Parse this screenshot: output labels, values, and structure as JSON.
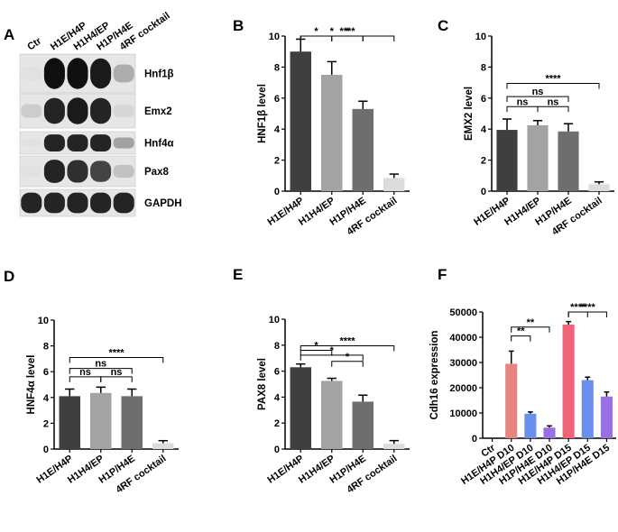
{
  "colors": {
    "dark": "#3f3f3f",
    "mid": "#8e8e8e",
    "light": "#6e6e6e",
    "faint": "#dcdcdc",
    "red": "#f0647a",
    "salmon": "#e8857f",
    "blue": "#6b8fee",
    "purple": "#9a6fe6"
  },
  "panels": {
    "A": {
      "letter": "A",
      "lanes": [
        "Ctr",
        "H1E/H4P",
        "H1H4/EP",
        "H1P/H4E",
        "4RF cocktail"
      ],
      "bands": [
        {
          "name": "Hnf1β",
          "intensity": [
            0.0,
            1.0,
            1.0,
            0.95,
            0.25
          ]
        },
        {
          "name": "Emx2",
          "intensity": [
            0.1,
            0.9,
            0.95,
            0.9,
            0.05
          ]
        },
        {
          "name": "Hnf4α",
          "intensity": [
            0.0,
            0.9,
            0.9,
            0.9,
            0.3
          ]
        },
        {
          "name": "Pax8",
          "intensity": [
            0.0,
            0.9,
            0.85,
            0.75,
            0.15
          ]
        },
        {
          "name": "GAPDH",
          "intensity": [
            0.9,
            0.9,
            0.9,
            0.9,
            0.9
          ]
        }
      ]
    }
  },
  "chart_data": [
    {
      "panel": "B",
      "type": "bar",
      "categories": [
        "H1E/H4P",
        "H1H4/EP",
        "H1P/H4E",
        "4RF cocktail"
      ],
      "values": [
        9.0,
        7.5,
        5.3,
        0.85
      ],
      "errors": [
        0.8,
        0.85,
        0.5,
        0.25
      ],
      "colors": [
        "#3f3f3f",
        "#a3a3a3",
        "#6e6e6e",
        "#dcdcdc"
      ],
      "ylabel": "HNF1β level",
      "ylim": [
        0,
        10
      ],
      "yticks": [
        0,
        2,
        4,
        6,
        8,
        10
      ],
      "significance": [
        {
          "from": 0,
          "to": 1,
          "label": "*"
        },
        {
          "from": 0,
          "to": 2,
          "label": "*"
        },
        {
          "from": 1,
          "to": 2,
          "label": "*"
        },
        {
          "from": 0,
          "to": 3,
          "label": "****"
        }
      ]
    },
    {
      "panel": "C",
      "type": "bar",
      "categories": [
        "H1E/H4P",
        "H1H4/EP",
        "H1P/H4E",
        "4RF cocktail"
      ],
      "values": [
        3.95,
        4.25,
        3.85,
        0.45
      ],
      "errors": [
        0.7,
        0.3,
        0.5,
        0.15
      ],
      "colors": [
        "#3f3f3f",
        "#a3a3a3",
        "#6e6e6e",
        "#dcdcdc"
      ],
      "ylabel": "EMX2 level",
      "ylim": [
        0,
        10
      ],
      "yticks": [
        0,
        2,
        4,
        6,
        8,
        10
      ],
      "significance": [
        {
          "from": 0,
          "to": 1,
          "label": "ns"
        },
        {
          "from": 1,
          "to": 2,
          "label": "ns"
        },
        {
          "from": 0,
          "to": 2,
          "label": "ns"
        },
        {
          "from": 0,
          "to": 3,
          "label": "****"
        }
      ]
    },
    {
      "panel": "D",
      "type": "bar",
      "categories": [
        "H1E/H4P",
        "H1H4/EP",
        "H1P/H4E",
        "4RF cocktail"
      ],
      "values": [
        4.1,
        4.35,
        4.1,
        0.45
      ],
      "errors": [
        0.55,
        0.45,
        0.55,
        0.2
      ],
      "colors": [
        "#3f3f3f",
        "#a3a3a3",
        "#6e6e6e",
        "#dcdcdc"
      ],
      "ylabel": "HNF4α  level",
      "ylim": [
        0,
        10
      ],
      "yticks": [
        0,
        2,
        4,
        6,
        8,
        10
      ],
      "significance": [
        {
          "from": 0,
          "to": 1,
          "label": "ns"
        },
        {
          "from": 1,
          "to": 2,
          "label": "ns"
        },
        {
          "from": 0,
          "to": 2,
          "label": "ns"
        },
        {
          "from": 0,
          "to": 3,
          "label": "****"
        }
      ]
    },
    {
      "panel": "E",
      "type": "bar",
      "categories": [
        "H1E/H4P",
        "H1H4/EP",
        "H1P/H4E",
        "4RF cocktail"
      ],
      "values": [
        6.3,
        5.25,
        3.65,
        0.4
      ],
      "errors": [
        0.25,
        0.2,
        0.5,
        0.25
      ],
      "colors": [
        "#3f3f3f",
        "#a3a3a3",
        "#6e6e6e",
        "#dcdcdc"
      ],
      "ylabel": "PAX8 level",
      "ylim": [
        0,
        10
      ],
      "yticks": [
        0,
        2,
        4,
        6,
        8,
        10
      ],
      "significance": [
        {
          "from": 0,
          "to": 1,
          "label": "*"
        },
        {
          "from": 0,
          "to": 2,
          "label": "*"
        },
        {
          "from": 1,
          "to": 2,
          "label": "*"
        },
        {
          "from": 0,
          "to": 3,
          "label": "****"
        }
      ]
    },
    {
      "panel": "F",
      "type": "bar",
      "categories": [
        "Ctr",
        "H1E/H4P D10",
        "H1H4/EP D10",
        "H1P/H4E D10",
        "H1E/H4P D15",
        "H1H4/EP D15",
        "H1P/H4E D15"
      ],
      "values": [
        0,
        29500,
        9700,
        4200,
        45000,
        23000,
        16500
      ],
      "errors": [
        0,
        5000,
        700,
        700,
        1200,
        1200,
        1800
      ],
      "colors": [
        "#ffffff",
        "#e8857f",
        "#6b8fee",
        "#9a6fe6",
        "#f0647a",
        "#6b8fee",
        "#9a6fe6"
      ],
      "ylabel": "Cdh16 expression",
      "ylim": [
        0,
        50000
      ],
      "yticks": [
        0,
        10000,
        20000,
        30000,
        40000,
        50000
      ],
      "significance": [
        {
          "from": 1,
          "to": 2,
          "label": "**"
        },
        {
          "from": 1,
          "to": 3,
          "label": "**"
        },
        {
          "from": 4,
          "to": 5,
          "label": "****"
        },
        {
          "from": 4,
          "to": 6,
          "label": "****"
        }
      ]
    }
  ]
}
